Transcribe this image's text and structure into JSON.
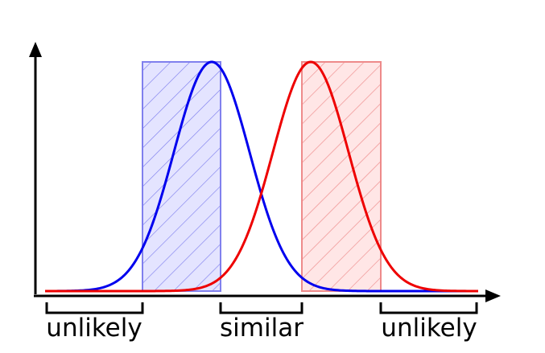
{
  "labels": {
    "left": "unlikely",
    "center": "similar",
    "right": "unlikely"
  },
  "colors": {
    "axis": "#000000",
    "blue_curve": "#0000ee",
    "red_curve": "#ee0000",
    "blue_band_fill": "#dcdcff",
    "blue_band_stroke": "#7777ee",
    "red_band_fill": "#ffe2e2",
    "red_band_stroke": "#ee8888",
    "text": "#000000"
  }
}
